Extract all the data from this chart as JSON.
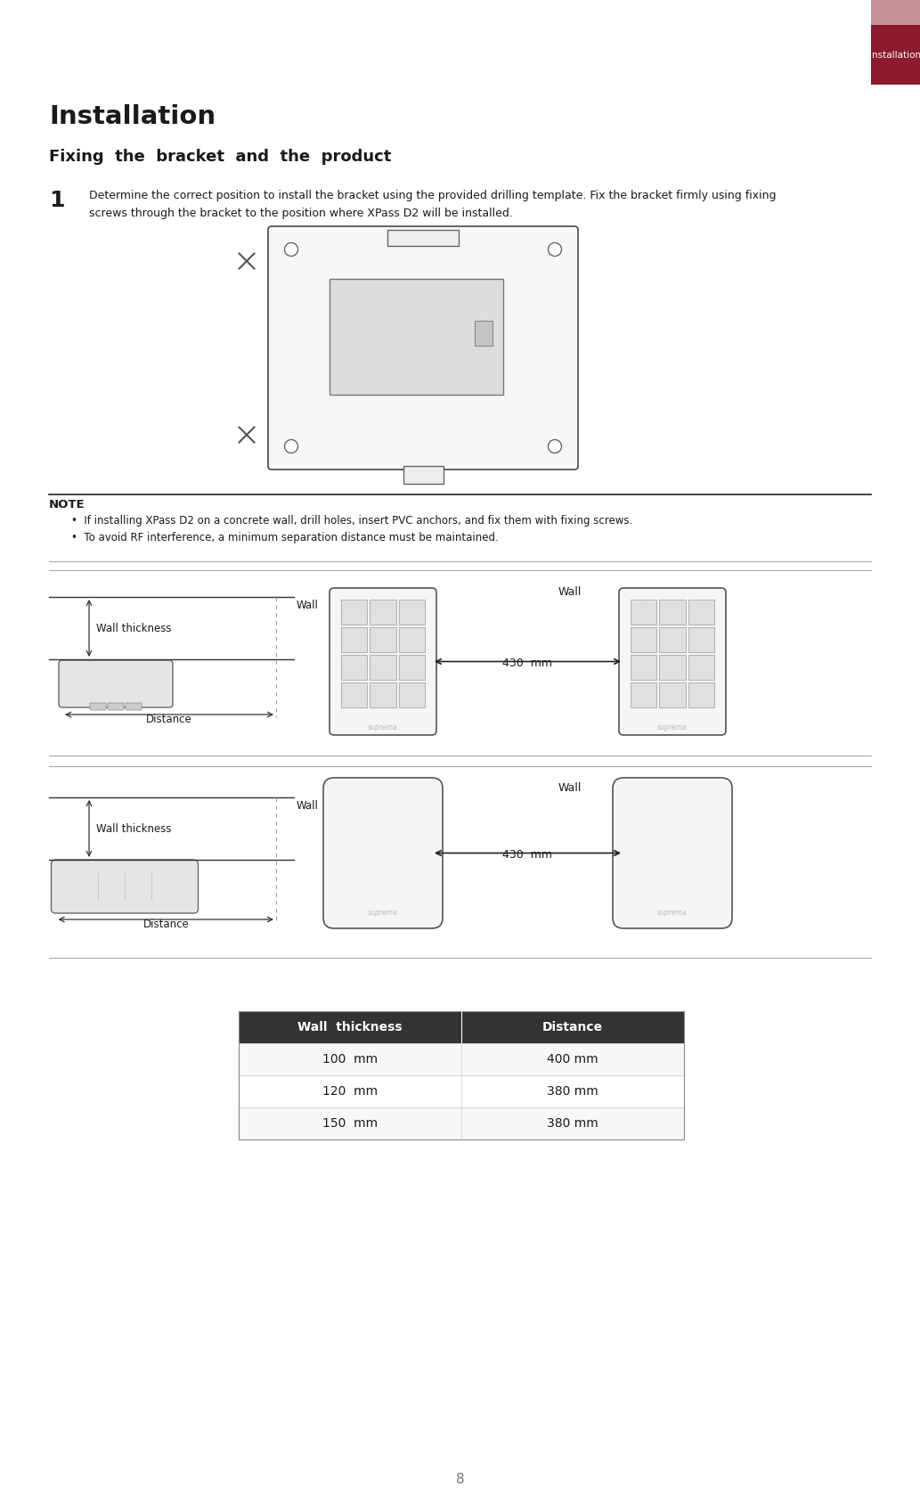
{
  "page_title": "Installation",
  "header_tab_color": "#8B1a2e",
  "header_tab_light": "#c8909a",
  "section_title": "Installation",
  "subsection_title": "Fixing  the  bracket  and  the  product",
  "step_number": "1",
  "step_text_line1": "Determine the correct position to install the bracket using the provided drilling template. Fix the bracket firmly using fixing",
  "step_text_line2": "screws through the bracket to the position where XPass D2 will be installed.",
  "note_label": "NOTE",
  "note_bullet1": "If installing XPass D2 on a concrete wall, drill holes, insert PVC anchors, and fix them with fixing screws.",
  "note_bullet2": "To avoid RF interference, a minimum separation distance must be maintained.",
  "wall_label": "Wall",
  "wall_thickness_label": "Wall thickness",
  "distance_label": "Distance",
  "separation_label": "430  mm",
  "table_headers": [
    "Wall  thickness",
    "Distance"
  ],
  "table_rows": [
    [
      "100  mm",
      "400 mm"
    ],
    [
      "120  mm",
      "380 mm"
    ],
    [
      "150  mm",
      "380 mm"
    ]
  ],
  "page_number": "8",
  "bg_color": "#ffffff",
  "dark_color": "#1a1a1a",
  "gray_color": "#777777",
  "mid_gray": "#aaaaaa",
  "light_gray": "#e8e8e8",
  "table_header_bg": "#333333",
  "table_header_fg": "#ffffff",
  "note_bg": "#f2f2f2"
}
